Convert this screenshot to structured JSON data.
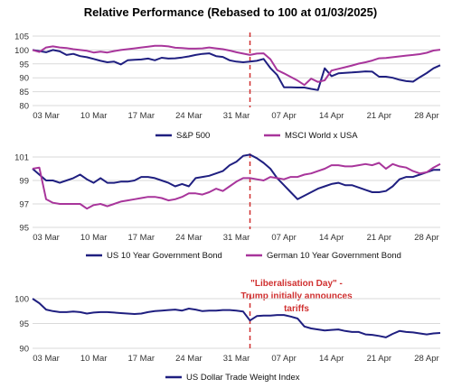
{
  "title": "Relative Performance (Rebased to 100 at 01/03/2025)",
  "x_tick_labels": [
    "03 Mar",
    "10 Mar",
    "17 Mar",
    "24 Mar",
    "31 Mar",
    "07 Apr",
    "14 Apr",
    "21 Apr",
    "28 Apr"
  ],
  "annotation": {
    "lines": [
      "\"Liberalisation Day\" -",
      "Trump initially announces",
      "tariffs"
    ],
    "event_date": "02 Apr",
    "color": "#d03030"
  },
  "colors": {
    "navy": "#1f1f80",
    "magenta": "#a8359b",
    "grid": "#d9d9d9"
  },
  "chart_data": [
    {
      "type": "line",
      "x_start": "01 Mar",
      "x_unit": "days",
      "x": [
        0,
        1,
        2,
        3,
        4,
        5,
        6,
        7,
        8,
        9,
        10,
        11,
        12,
        13,
        14,
        15,
        16,
        17,
        18,
        19,
        20,
        21,
        22,
        23,
        24,
        25,
        26,
        27,
        28,
        29,
        30,
        31,
        32,
        33,
        34,
        35,
        36,
        37,
        38,
        39,
        40,
        41,
        42,
        43,
        44,
        45,
        46,
        47,
        48,
        49,
        50,
        51,
        52,
        53,
        54,
        55,
        56,
        57,
        58,
        59,
        60
      ],
      "ylim": [
        80,
        105
      ],
      "yticks": [
        80,
        85,
        90,
        95,
        100,
        105
      ],
      "grid": true,
      "legend_position": "bottom",
      "series": [
        {
          "name": "S&P 500",
          "color": "#1f1f80",
          "values": [
            100.0,
            99.6,
            99.2,
            100.0,
            99.5,
            98.2,
            98.6,
            97.8,
            97.4,
            96.8,
            96.1,
            95.6,
            95.8,
            94.8,
            96.3,
            96.5,
            96.6,
            96.9,
            96.3,
            97.2,
            96.9,
            97.0,
            97.3,
            97.7,
            98.2,
            98.6,
            98.8,
            97.8,
            97.5,
            96.3,
            95.8,
            95.6,
            95.8,
            96.1,
            96.8,
            93.5,
            91.0,
            86.6,
            86.6,
            86.5,
            86.5,
            86.0,
            85.6,
            93.4,
            90.6,
            91.6,
            91.8,
            91.9,
            92.1,
            92.3,
            92.2,
            90.4,
            90.4,
            90.0,
            89.3,
            88.8,
            88.6,
            90.2,
            91.7,
            93.4,
            94.5
          ]
        },
        {
          "name": "MSCI World x USA",
          "color": "#a8359b",
          "values": [
            100.0,
            99.3,
            100.9,
            101.3,
            100.9,
            100.7,
            100.3,
            100.0,
            99.7,
            99.1,
            99.4,
            99.1,
            99.6,
            100.0,
            100.3,
            100.6,
            100.9,
            101.2,
            101.5,
            101.5,
            101.3,
            100.8,
            100.7,
            100.5,
            100.5,
            100.6,
            100.9,
            100.6,
            100.3,
            99.8,
            99.2,
            98.7,
            98.2,
            98.7,
            98.8,
            96.7,
            92.8,
            91.6,
            90.3,
            89.0,
            87.4,
            89.7,
            88.5,
            89.1,
            92.6,
            93.2,
            93.8,
            94.4,
            95.1,
            95.6,
            96.2,
            97.0,
            97.1,
            97.4,
            97.7,
            98.0,
            98.2,
            98.5,
            99.0,
            99.8,
            100.1
          ]
        }
      ]
    },
    {
      "type": "line",
      "x_start": "01 Mar",
      "x_unit": "days",
      "x": [
        0,
        1,
        2,
        3,
        4,
        5,
        6,
        7,
        8,
        9,
        10,
        11,
        12,
        13,
        14,
        15,
        16,
        17,
        18,
        19,
        20,
        21,
        22,
        23,
        24,
        25,
        26,
        27,
        28,
        29,
        30,
        31,
        32,
        33,
        34,
        35,
        36,
        37,
        38,
        39,
        40,
        41,
        42,
        43,
        44,
        45,
        46,
        47,
        48,
        49,
        50,
        51,
        52,
        53,
        54,
        55,
        56,
        57,
        58,
        59,
        60
      ],
      "ylim": [
        95,
        101
      ],
      "yticks": [
        95,
        97,
        99,
        101
      ],
      "grid": true,
      "legend_position": "bottom",
      "series": [
        {
          "name": "US 10 Year Government Bond",
          "color": "#1f1f80",
          "values": [
            100.0,
            99.5,
            99.0,
            99.0,
            98.8,
            99.0,
            99.2,
            99.5,
            99.1,
            98.8,
            99.2,
            98.8,
            98.8,
            98.9,
            98.9,
            99.0,
            99.3,
            99.3,
            99.2,
            99.0,
            98.8,
            98.5,
            98.7,
            98.5,
            99.2,
            99.3,
            99.4,
            99.6,
            99.8,
            100.3,
            100.6,
            101.1,
            101.2,
            100.9,
            100.5,
            100.0,
            99.2,
            98.6,
            98.0,
            97.4,
            97.7,
            98.0,
            98.3,
            98.5,
            98.7,
            98.8,
            98.6,
            98.6,
            98.4,
            98.2,
            98.0,
            98.0,
            98.1,
            98.5,
            99.1,
            99.3,
            99.3,
            99.5,
            99.7,
            99.9,
            99.9
          ]
        },
        {
          "name": "German 10 Year Government Bond",
          "color": "#a8359b",
          "values": [
            100.0,
            100.1,
            97.4,
            97.1,
            97.0,
            97.0,
            97.0,
            97.0,
            96.6,
            96.9,
            97.0,
            96.8,
            97.0,
            97.2,
            97.3,
            97.4,
            97.5,
            97.6,
            97.6,
            97.5,
            97.3,
            97.4,
            97.6,
            97.9,
            97.9,
            97.8,
            98.0,
            98.3,
            98.1,
            98.5,
            98.9,
            99.2,
            99.2,
            99.1,
            99.0,
            99.3,
            99.2,
            99.1,
            99.3,
            99.3,
            99.5,
            99.6,
            99.8,
            100.0,
            100.3,
            100.3,
            100.2,
            100.2,
            100.3,
            100.4,
            100.3,
            100.5,
            100.0,
            100.4,
            100.2,
            100.1,
            99.8,
            99.6,
            99.7,
            100.1,
            100.4
          ]
        }
      ]
    },
    {
      "type": "line",
      "x_start": "01 Mar",
      "x_unit": "days",
      "x": [
        0,
        1,
        2,
        3,
        4,
        5,
        6,
        7,
        8,
        9,
        10,
        11,
        12,
        13,
        14,
        15,
        16,
        17,
        18,
        19,
        20,
        21,
        22,
        23,
        24,
        25,
        26,
        27,
        28,
        29,
        30,
        31,
        32,
        33,
        34,
        35,
        36,
        37,
        38,
        39,
        40,
        41,
        42,
        43,
        44,
        45,
        46,
        47,
        48,
        49,
        50,
        51,
        52,
        53,
        54,
        55,
        56,
        57,
        58,
        59,
        60
      ],
      "ylim": [
        90,
        100
      ],
      "yticks": [
        90,
        95,
        100
      ],
      "grid": true,
      "legend_position": "bottom",
      "series": [
        {
          "name": "US Dollar Trade Weight Index",
          "color": "#1f1f80",
          "values": [
            100.0,
            99.1,
            97.8,
            97.5,
            97.3,
            97.3,
            97.4,
            97.3,
            97.0,
            97.2,
            97.3,
            97.3,
            97.2,
            97.1,
            97.0,
            96.9,
            97.0,
            97.3,
            97.5,
            97.6,
            97.7,
            97.8,
            97.6,
            98.0,
            97.8,
            97.5,
            97.6,
            97.6,
            97.7,
            97.7,
            97.6,
            97.4,
            95.6,
            96.5,
            96.6,
            96.6,
            96.7,
            96.7,
            96.4,
            96.0,
            94.4,
            94.0,
            93.8,
            93.6,
            93.7,
            93.8,
            93.5,
            93.3,
            93.3,
            92.8,
            92.7,
            92.5,
            92.2,
            92.9,
            93.5,
            93.3,
            93.2,
            93.0,
            92.8,
            93.0,
            93.1
          ]
        }
      ]
    }
  ]
}
